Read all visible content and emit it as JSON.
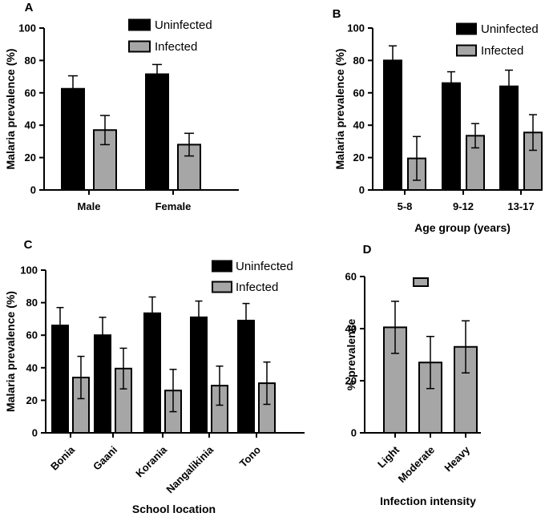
{
  "chart_data": [
    {
      "panel": "A",
      "type": "bar",
      "title": "",
      "xlabel": "",
      "ylabel": "Malaria prevalence (%)",
      "ylim": [
        0,
        100
      ],
      "yticks": [
        "0",
        "20",
        "40",
        "60",
        "80",
        "100"
      ],
      "categories": [
        "Male",
        "Female"
      ],
      "legend_position": "top-right",
      "series": [
        {
          "name": "Uninfected",
          "color": "#000000",
          "values": [
            62.5,
            71.5
          ],
          "errors": [
            8,
            6
          ]
        },
        {
          "name": "Infected",
          "color": "#a6a6a6",
          "values": [
            37,
            28
          ],
          "errors": [
            9,
            7
          ]
        }
      ]
    },
    {
      "panel": "B",
      "type": "bar",
      "title": "",
      "xlabel": "Age group (years)",
      "ylabel": "Malaria prevalence (%)",
      "ylim": [
        0,
        100
      ],
      "yticks": [
        "0",
        "20",
        "40",
        "60",
        "80",
        "100"
      ],
      "categories": [
        "5-8",
        "9-12",
        "13-17"
      ],
      "legend_position": "top-right",
      "series": [
        {
          "name": "Uninfected",
          "color": "#000000",
          "values": [
            80,
            66,
            64
          ],
          "errors": [
            9,
            7,
            10
          ]
        },
        {
          "name": "Infected",
          "color": "#a6a6a6",
          "values": [
            19.5,
            33.5,
            35.5
          ],
          "errors": [
            13.5,
            7.5,
            11
          ]
        }
      ]
    },
    {
      "panel": "C",
      "type": "bar",
      "title": "",
      "xlabel": "School location",
      "ylabel": "Malaria prevalence (%)",
      "ylim": [
        0,
        100
      ],
      "yticks": [
        "0",
        "20",
        "40",
        "60",
        "80",
        "100"
      ],
      "categories": [
        "Bonia",
        "Gaani",
        "Korania",
        "Nangalikinia",
        "Tono"
      ],
      "legend_position": "top-right",
      "series": [
        {
          "name": "Uninfected",
          "color": "#000000",
          "values": [
            66,
            60,
            73.5,
            71,
            69
          ],
          "errors": [
            11,
            11,
            10,
            10,
            10.5
          ]
        },
        {
          "name": "Infected",
          "color": "#a6a6a6",
          "values": [
            34,
            39.5,
            26,
            29,
            30.5
          ],
          "errors": [
            13,
            12.5,
            13,
            12,
            13
          ]
        }
      ]
    },
    {
      "panel": "D",
      "type": "bar",
      "title": "",
      "xlabel": "Infection intensity",
      "ylabel": "% prevalence",
      "ylim": [
        0,
        60
      ],
      "yticks": [
        "0",
        "20",
        "40",
        "60"
      ],
      "categories": [
        "Light",
        "Moderate",
        "Heavy"
      ],
      "legend_position": "top-center",
      "series": [
        {
          "name": "",
          "color": "#a6a6a6",
          "values": [
            40.5,
            27,
            33
          ],
          "errors": [
            10,
            10,
            10
          ]
        }
      ]
    }
  ]
}
